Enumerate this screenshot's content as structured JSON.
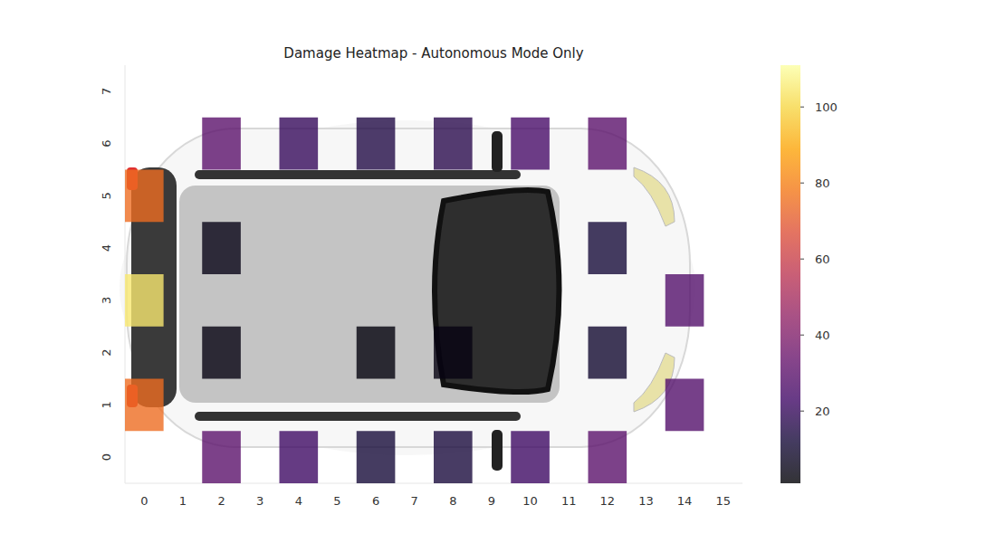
{
  "chart_data": {
    "type": "heatmap",
    "title": "Damage Heatmap - Autonomous Mode Only",
    "color": "inferno",
    "xlim": [
      -0.5,
      15.5
    ],
    "ylim": [
      -0.5,
      7.5
    ],
    "xticks": [
      0,
      1,
      2,
      3,
      4,
      5,
      6,
      7,
      8,
      9,
      10,
      11,
      12,
      13,
      14,
      15
    ],
    "yticks": [
      0,
      1,
      2,
      3,
      4,
      5,
      6,
      7
    ],
    "z": [
      [
        null,
        null,
        30,
        null,
        22,
        null,
        12,
        null,
        13,
        null,
        22,
        null,
        30,
        null,
        null,
        null
      ],
      [
        75,
        null,
        null,
        null,
        null,
        null,
        null,
        null,
        null,
        null,
        null,
        null,
        null,
        null,
        28,
        null
      ],
      [
        null,
        null,
        4,
        null,
        null,
        null,
        3,
        null,
        4,
        null,
        null,
        null,
        10,
        null,
        null,
        null
      ],
      [
        105,
        null,
        null,
        null,
        null,
        null,
        null,
        null,
        null,
        null,
        null,
        null,
        null,
        null,
        28,
        null
      ],
      [
        null,
        null,
        5,
        null,
        null,
        null,
        null,
        null,
        null,
        null,
        null,
        null,
        12,
        null,
        null,
        null
      ],
      [
        75,
        null,
        null,
        null,
        null,
        null,
        null,
        null,
        null,
        null,
        null,
        null,
        null,
        null,
        null,
        null
      ],
      [
        null,
        null,
        30,
        null,
        20,
        null,
        15,
        null,
        17,
        null,
        25,
        null,
        30,
        null,
        null,
        null
      ],
      [
        null,
        null,
        null,
        null,
        null,
        null,
        null,
        null,
        null,
        null,
        null,
        null,
        null,
        null,
        null,
        null
      ]
    ],
    "color_range": [
      1,
      111
    ],
    "color_ticks": [
      20,
      40,
      60,
      80,
      100
    ]
  }
}
